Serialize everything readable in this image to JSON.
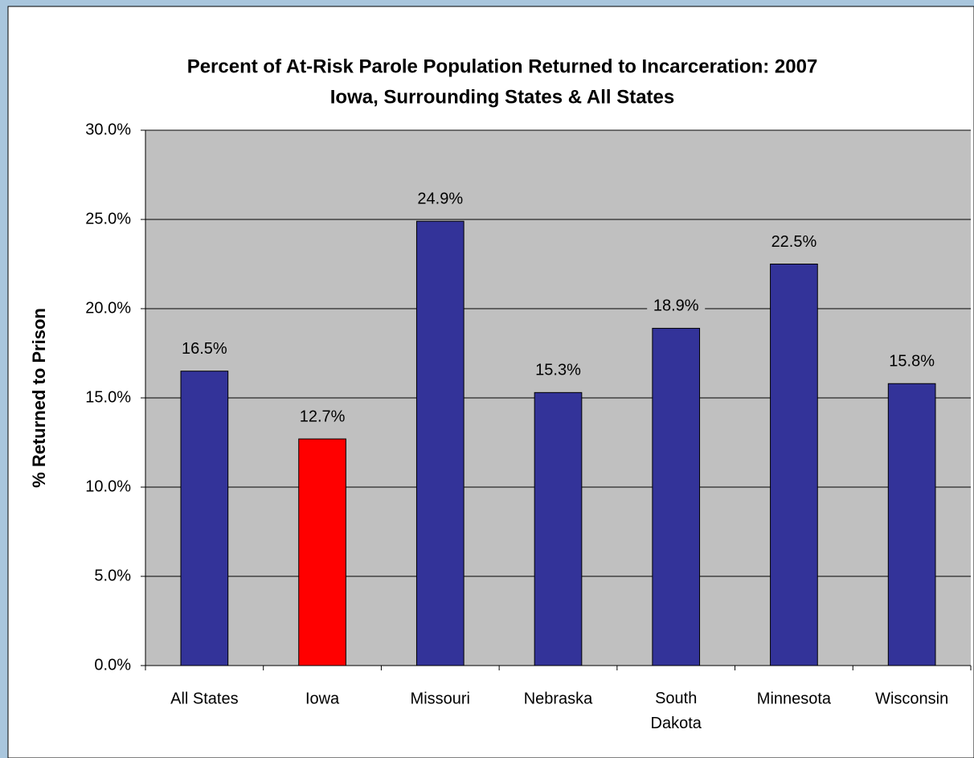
{
  "chart_data": {
    "type": "bar",
    "title": "Percent of At-Risk Parole Population Returned to Incarceration: 2007",
    "subtitle": "Iowa, Surrounding States & All States",
    "y_label": "% Returned to Prison",
    "categories": [
      "All States",
      "Iowa",
      "Missouri",
      "Nebraska",
      "South Dakota",
      "Minnesota",
      "Wisconsin"
    ],
    "values": [
      16.5,
      12.7,
      24.9,
      15.3,
      18.9,
      22.5,
      15.8
    ],
    "value_labels": [
      "16.5%",
      "12.7%",
      "24.9%",
      "15.3%",
      "18.9%",
      "22.5%",
      "15.8%"
    ],
    "colors": [
      "#333399",
      "#ff0000",
      "#333399",
      "#333399",
      "#333399",
      "#333399",
      "#333399"
    ],
    "ylim": [
      0,
      30
    ],
    "yticks": [
      {
        "value": 0,
        "label": "0.0%"
      },
      {
        "value": 5,
        "label": "5.0%"
      },
      {
        "value": 10,
        "label": "10.0%"
      },
      {
        "value": 15,
        "label": "15.0%"
      },
      {
        "value": 20,
        "label": "20.0%"
      },
      {
        "value": 25,
        "label": "25.0%"
      },
      {
        "value": 30,
        "label": "30.0%"
      }
    ],
    "grid": true
  }
}
